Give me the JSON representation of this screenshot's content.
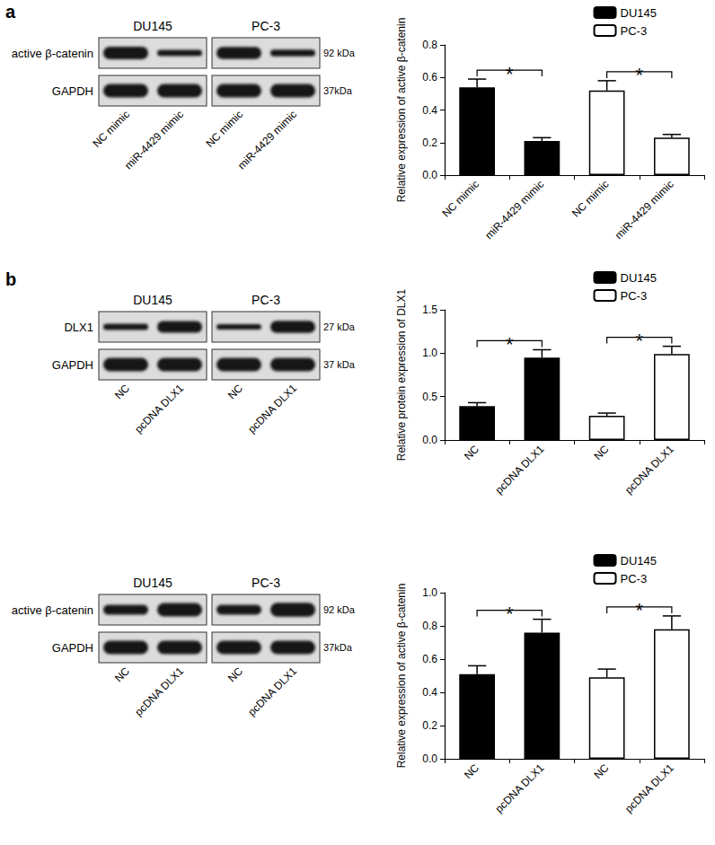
{
  "panels": [
    "a",
    "b"
  ],
  "blots": [
    {
      "groups": [
        "DU145",
        "PC-3"
      ],
      "lanes": [
        "NC mimic",
        "miR-4429 mimic"
      ],
      "rows": [
        {
          "label": "active β-catenin",
          "size": "92 kDa"
        },
        {
          "label": "GAPDH",
          "size": "37kDa"
        }
      ]
    },
    {
      "groups": [
        "DU145",
        "PC-3"
      ],
      "lanes": [
        "NC",
        "pcDNA DLX1"
      ],
      "rows": [
        {
          "label": "DLX1",
          "size": "27 kDa"
        },
        {
          "label": "GAPDH",
          "size": "37 kDa"
        }
      ]
    },
    {
      "groups": [
        "DU145",
        "PC-3"
      ],
      "lanes": [
        "NC",
        "pcDNA DLX1"
      ],
      "rows": [
        {
          "label": "active β-catenin",
          "size": "92 kDa"
        },
        {
          "label": "GAPDH",
          "size": "37kDa"
        }
      ]
    }
  ],
  "chart_data": [
    {
      "type": "bar",
      "y_label": "Relative expression of active β-catenin",
      "categories": [
        "NC mimic",
        "miR-4429 mimic",
        "NC mimic",
        "miR-4429 mimic"
      ],
      "series": [
        {
          "name": "DU145",
          "color": "#000000",
          "values": [
            0.54,
            0.21,
            null,
            null
          ],
          "errors": [
            0.05,
            0.02,
            null,
            null
          ]
        },
        {
          "name": "PC-3",
          "color": "#ffffff",
          "values": [
            null,
            null,
            0.52,
            0.23
          ],
          "errors": [
            null,
            null,
            0.06,
            0.02
          ]
        }
      ],
      "annotations": [
        {
          "from": 0,
          "to": 1,
          "text": "*"
        },
        {
          "from": 2,
          "to": 3,
          "text": "*"
        }
      ],
      "ylim": [
        0,
        0.8
      ],
      "yticks": [
        {
          "value": 0,
          "label": "0.0"
        },
        0.2,
        0.4,
        0.6,
        0.8
      ],
      "grid": false,
      "legend": "top-right"
    },
    {
      "type": "bar",
      "y_label": "Relative protein expression of DLX1",
      "categories": [
        "NC",
        "pcDNA DLX1",
        "NC",
        "pcDNA DLX1"
      ],
      "series": [
        {
          "name": "DU145",
          "color": "#000000",
          "values": [
            0.39,
            0.95,
            null,
            null
          ],
          "errors": [
            0.04,
            0.09,
            null,
            null
          ]
        },
        {
          "name": "PC-3",
          "color": "#ffffff",
          "values": [
            null,
            null,
            0.28,
            0.99
          ],
          "errors": [
            null,
            null,
            0.03,
            0.09
          ]
        }
      ],
      "annotations": [
        {
          "from": 0,
          "to": 1,
          "text": "*"
        },
        {
          "from": 2,
          "to": 3,
          "text": "*"
        }
      ],
      "ylim": [
        0,
        1.5
      ],
      "yticks": [
        {
          "value": 0,
          "label": "0.0"
        },
        0.5,
        {
          "value": 1,
          "label": "1.0"
        },
        1.5
      ],
      "grid": false,
      "legend": "top-right"
    },
    {
      "type": "bar",
      "y_label": "Relative expression of active β-catenin",
      "categories": [
        "NC",
        "pcDNA DLX1",
        "NC",
        "pcDNA DLX1"
      ],
      "series": [
        {
          "name": "DU145",
          "color": "#000000",
          "values": [
            0.51,
            0.76,
            null,
            null
          ],
          "errors": [
            0.05,
            0.08,
            null,
            null
          ]
        },
        {
          "name": "PC-3",
          "color": "#ffffff",
          "values": [
            null,
            null,
            0.49,
            0.78
          ],
          "errors": [
            null,
            null,
            0.05,
            0.08
          ]
        }
      ],
      "annotations": [
        {
          "from": 0,
          "to": 1,
          "text": "*"
        },
        {
          "from": 2,
          "to": 3,
          "text": "*"
        }
      ],
      "ylim": [
        0,
        1
      ],
      "yticks": [
        {
          "value": 0,
          "label": "0.0"
        },
        0.2,
        0.4,
        0.6,
        0.8,
        {
          "value": 1,
          "label": "1.0"
        }
      ],
      "grid": false,
      "legend": "top-right"
    }
  ]
}
